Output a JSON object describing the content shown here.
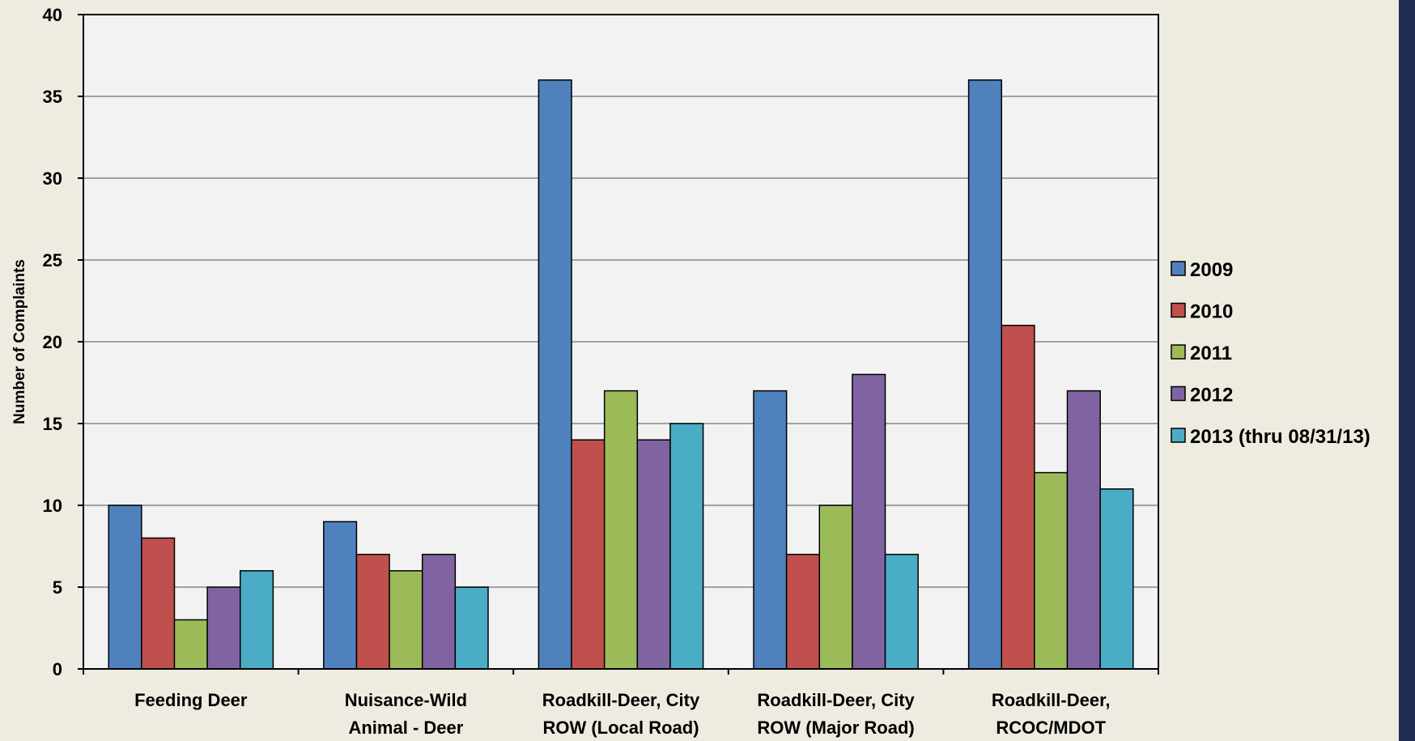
{
  "chart_data": {
    "type": "bar",
    "title": "",
    "xlabel": "",
    "ylabel": "Number of Complaints",
    "ylim": [
      0,
      40
    ],
    "yticks": [
      0,
      5,
      10,
      15,
      20,
      25,
      30,
      35,
      40
    ],
    "grid": true,
    "legend_position": "right",
    "categories": [
      [
        "Feeding Deer"
      ],
      [
        "Nuisance-Wild",
        "Animal - Deer"
      ],
      [
        "Roadkill-Deer, City",
        "ROW (Local Road)"
      ],
      [
        "Roadkill-Deer, City",
        "ROW (Major Road)"
      ],
      [
        "Roadkill-Deer,",
        "RCOC/MDOT"
      ]
    ],
    "series": [
      {
        "name": "2009",
        "color": "#4f81bd",
        "values": [
          10,
          9,
          36,
          17,
          36
        ]
      },
      {
        "name": "2010",
        "color": "#c0504d",
        "values": [
          8,
          7,
          14,
          7,
          21
        ]
      },
      {
        "name": "2011",
        "color": "#9bbb59",
        "values": [
          3,
          6,
          17,
          10,
          12
        ]
      },
      {
        "name": "2012",
        "color": "#8064a2",
        "values": [
          5,
          7,
          14,
          18,
          17
        ]
      },
      {
        "name": "2013 (thru 08/31/13)",
        "color": "#4bacc6",
        "values": [
          6,
          5,
          15,
          7,
          11
        ]
      }
    ]
  }
}
